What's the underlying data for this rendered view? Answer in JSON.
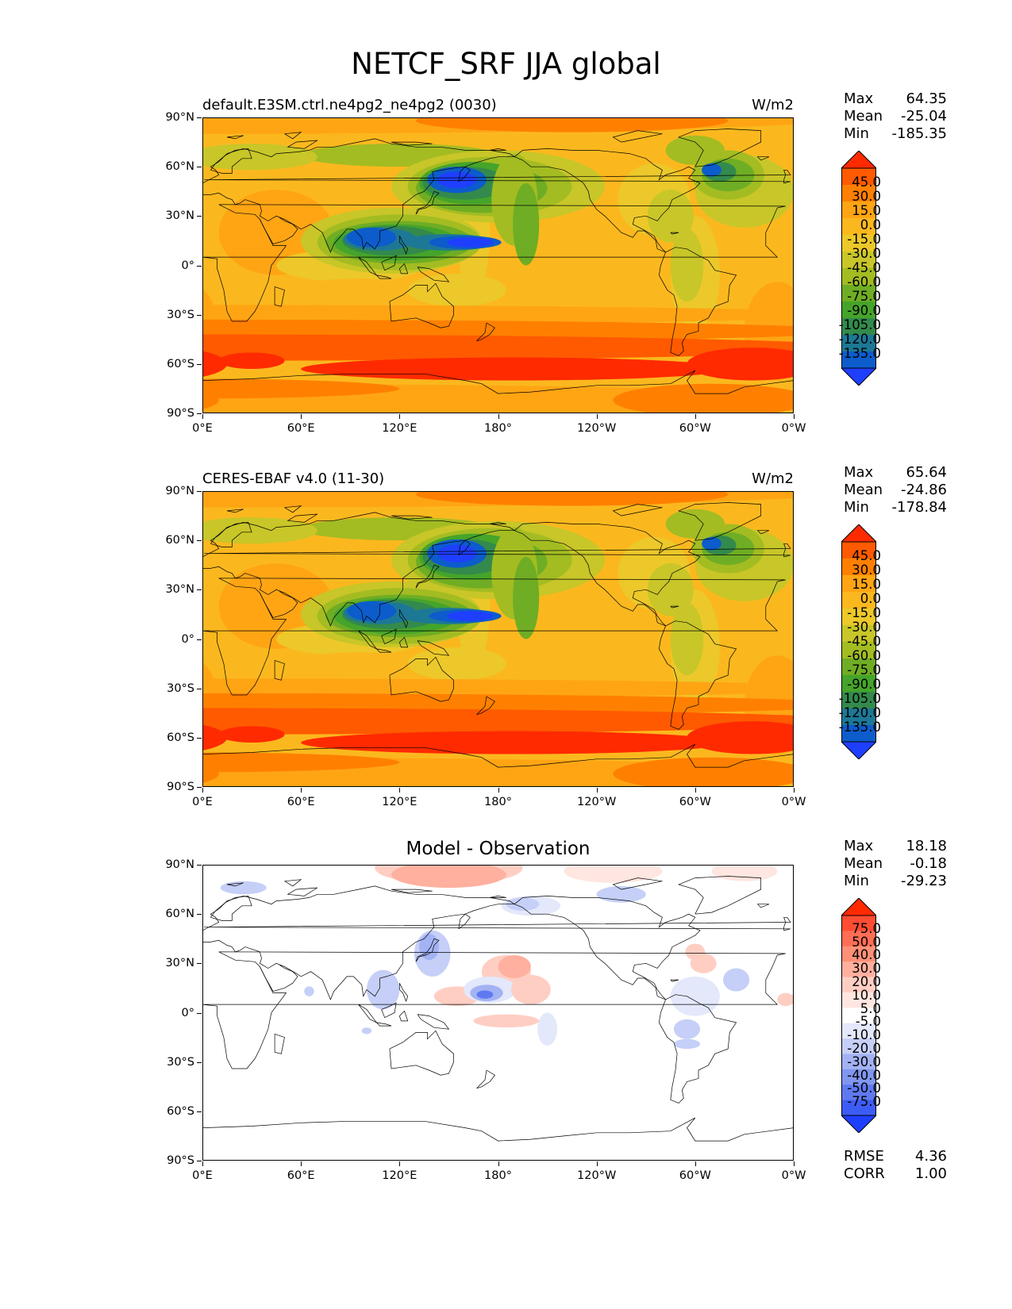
{
  "title": "NETCF_SRF JJA global",
  "axes": {
    "y_ticks": [
      "90°N",
      "60°N",
      "30°N",
      "0°",
      "30°S",
      "60°S",
      "90°S"
    ],
    "x_ticks": [
      "0°E",
      "60°E",
      "120°E",
      "180°",
      "120°W",
      "60°W",
      "0°W"
    ]
  },
  "panels": [
    {
      "title": "default.E3SM.ctrl.ne4pg2_ne4pg2 (0030)",
      "units": "W/m2",
      "stats": [
        {
          "name": "Max",
          "value": "64.35"
        },
        {
          "name": "Mean",
          "value": "-25.04"
        },
        {
          "name": "Min",
          "value": "-185.35"
        }
      ],
      "colorbar_labels": [
        "45.0",
        "30.0",
        "15.0",
        "0.0",
        "-15.0",
        "-30.0",
        "-45.0",
        "-60.0",
        "-75.0",
        "-90.0",
        "-105.0",
        "-120.0",
        "-135.0"
      ]
    },
    {
      "title": "CERES-EBAF v4.0 (11-30)",
      "units": "W/m2",
      "stats": [
        {
          "name": "Max",
          "value": "65.64"
        },
        {
          "name": "Mean",
          "value": "-24.86"
        },
        {
          "name": "Min",
          "value": "-178.84"
        }
      ],
      "colorbar_labels": [
        "45.0",
        "30.0",
        "15.0",
        "0.0",
        "-15.0",
        "-30.0",
        "-45.0",
        "-60.0",
        "-75.0",
        "-90.0",
        "-105.0",
        "-120.0",
        "-135.0"
      ]
    },
    {
      "title": "Model - Observation",
      "units": "",
      "stats": [
        {
          "name": "Max",
          "value": "18.18"
        },
        {
          "name": "Mean",
          "value": "-0.18"
        },
        {
          "name": "Min",
          "value": "-29.23"
        }
      ],
      "colorbar_labels": [
        "75.0",
        "50.0",
        "40.0",
        "30.0",
        "20.0",
        "10.0",
        "5.0",
        "-5.0",
        "-10.0",
        "-20.0",
        "-30.0",
        "-40.0",
        "-50.0",
        "-75.0"
      ]
    }
  ],
  "metrics": [
    {
      "name": "RMSE",
      "value": "4.36"
    },
    {
      "name": "CORR",
      "value": "1.00"
    }
  ],
  "colors": {
    "field_scale": [
      "#ff2a00",
      "#ff5a00",
      "#ff8000",
      "#ffa514",
      "#fbb81e",
      "#ecc82a",
      "#c8c628",
      "#a3bc22",
      "#6fad24",
      "#45a42a",
      "#338a4c",
      "#1d7896",
      "#0c5ccc",
      "#1f3fff"
    ],
    "diff_scale": [
      "#ff2a00",
      "#ff4d33",
      "#ff6e55",
      "#ff9078",
      "#ffb09f",
      "#ffcec3",
      "#ffe6e0",
      "#ffffff",
      "#e3e8fb",
      "#c5cff7",
      "#a3b2f3",
      "#8196ef",
      "#5f7af0",
      "#3d5cf5",
      "#1f3fff"
    ]
  }
}
